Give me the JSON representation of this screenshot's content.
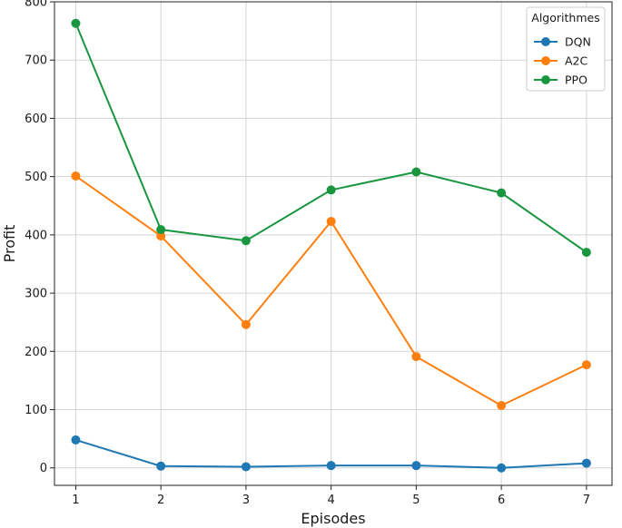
{
  "chart_data": {
    "type": "line",
    "title": "",
    "xlabel": "Episodes",
    "ylabel": "Profit",
    "x": [
      1,
      2,
      3,
      4,
      5,
      6,
      7
    ],
    "xlim": [
      0.75,
      7.3
    ],
    "ylim": [
      -30,
      800
    ],
    "xticks": [
      1,
      2,
      3,
      4,
      5,
      6,
      7
    ],
    "yticks": [
      0,
      100,
      200,
      300,
      400,
      500,
      600,
      700,
      800
    ],
    "grid": true,
    "legend": {
      "title": "Algorithmes",
      "placement": "top-right"
    },
    "series": [
      {
        "name": "DQN",
        "color": "#1f77b4",
        "values": [
          48,
          3,
          2,
          4,
          4,
          0,
          8
        ]
      },
      {
        "name": "A2C",
        "color": "#ff7f0e",
        "values": [
          501,
          398,
          246,
          423,
          191,
          107,
          177
        ]
      },
      {
        "name": "PPO",
        "color": "#1a9641",
        "values": [
          763,
          409,
          390,
          477,
          508,
          472,
          370
        ]
      }
    ]
  }
}
